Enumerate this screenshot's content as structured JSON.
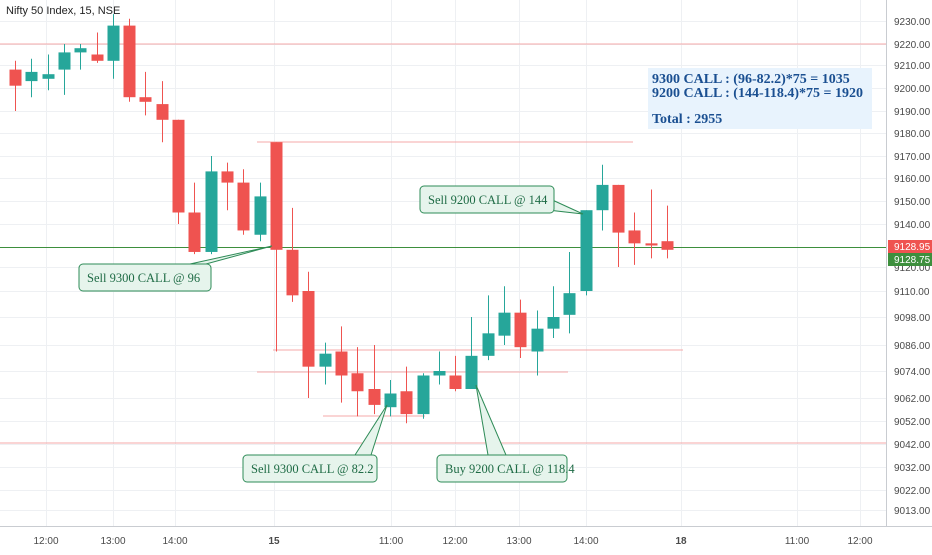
{
  "header": {
    "symbol_title": "Nifty 50 Index, 15, NSE"
  },
  "colors": {
    "up": "#26a69a",
    "down": "#ef5350",
    "grid": "#eef0f3",
    "level_line": "#f4a8a8",
    "green_line": "#3d8f3d",
    "note_bg": "#e8f3fd",
    "note_text": "#1a4f91",
    "callout_bg": "#e6f4ec",
    "callout_border": "#2e8b57",
    "callout_text": "#1e6b45",
    "axis_text": "#4a4a4a"
  },
  "price_badges": {
    "last": "9128.95",
    "reference": "9128.75"
  },
  "note": {
    "line1": "9300 CALL : (96-82.2)*75 = 1035",
    "line2": "9200 CALL : (144-118.4)*75 = 1920",
    "total": "Total : 2955"
  },
  "callouts": [
    "Sell 9300 CALL @ 96",
    "Sell 9300 CALL @ 82.2",
    "Buy 9200 CALL @ 118.4",
    "Sell 9200 CALL @ 144"
  ],
  "chart_data": {
    "type": "candlestick",
    "title": "Nifty 50 Index, 15, NSE",
    "yticks": [
      "9230.00",
      "9220.00",
      "9210.00",
      "9200.00",
      "9190.00",
      "9180.00",
      "9170.00",
      "9160.00",
      "9150.00",
      "9140.00",
      "9120.00",
      "9110.00",
      "9098.00",
      "9086.00",
      "9074.00",
      "9062.00",
      "9052.00",
      "9042.00",
      "9032.00",
      "9022.00",
      "9013.00"
    ],
    "xticks": [
      "12:00",
      "13:00",
      "14:00",
      "15",
      "11:00",
      "12:00",
      "13:00",
      "14:00",
      "18",
      "11:00",
      "12:00"
    ],
    "candles": [
      {
        "o": 9208,
        "h": 9212,
        "l": 9190,
        "c": 9201
      },
      {
        "o": 9203,
        "h": 9213,
        "l": 9196,
        "c": 9207
      },
      {
        "o": 9204,
        "h": 9215,
        "l": 9199,
        "c": 9206
      },
      {
        "o": 9208,
        "h": 9220,
        "l": 9197,
        "c": 9216
      },
      {
        "o": 9216,
        "h": 9220,
        "l": 9208,
        "c": 9218
      },
      {
        "o": 9215,
        "h": 9225,
        "l": 9211,
        "c": 9212
      },
      {
        "o": 9212,
        "h": 9233,
        "l": 9204,
        "c": 9228
      },
      {
        "o": 9228,
        "h": 9231,
        "l": 9194,
        "c": 9196
      },
      {
        "o": 9196,
        "h": 9207,
        "l": 9188,
        "c": 9194
      },
      {
        "o": 9193,
        "h": 9203,
        "l": 9176,
        "c": 9186
      },
      {
        "o": 9186,
        "h": 9186,
        "l": 9140,
        "c": 9145
      },
      {
        "o": 9145,
        "h": 9158,
        "l": 9126,
        "c": 9127
      },
      {
        "o": 9127,
        "h": 9170,
        "l": 9126,
        "c": 9163
      },
      {
        "o": 9163,
        "h": 9167,
        "l": 9146,
        "c": 9158
      },
      {
        "o": 9158,
        "h": 9164,
        "l": 9135,
        "c": 9137
      },
      {
        "o": 9135,
        "h": 9158,
        "l": 9132,
        "c": 9152
      },
      {
        "o": 9176,
        "h": 9176,
        "l": 9083,
        "c": 9128
      },
      {
        "o": 9128,
        "h": 9147,
        "l": 9105,
        "c": 9108
      },
      {
        "o": 9110,
        "h": 9118,
        "l": 9062,
        "c": 9076
      },
      {
        "o": 9076,
        "h": 9087,
        "l": 9068,
        "c": 9082
      },
      {
        "o": 9083,
        "h": 9094,
        "l": 9060,
        "c": 9072
      },
      {
        "o": 9073,
        "h": 9085,
        "l": 9054,
        "c": 9065
      },
      {
        "o": 9066,
        "h": 9086,
        "l": 9055,
        "c": 9059
      },
      {
        "o": 9058,
        "h": 9070,
        "l": 9054,
        "c": 9064
      },
      {
        "o": 9065,
        "h": 9076,
        "l": 9051,
        "c": 9055
      },
      {
        "o": 9055,
        "h": 9073,
        "l": 9053,
        "c": 9072
      },
      {
        "o": 9072,
        "h": 9083,
        "l": 9068,
        "c": 9074
      },
      {
        "o": 9072,
        "h": 9081,
        "l": 9065,
        "c": 9066
      },
      {
        "o": 9066,
        "h": 9098,
        "l": 9066,
        "c": 9081
      },
      {
        "o": 9081,
        "h": 9108,
        "l": 9079,
        "c": 9091
      },
      {
        "o": 9090,
        "h": 9112,
        "l": 9086,
        "c": 9100
      },
      {
        "o": 9100,
        "h": 9106,
        "l": 9080,
        "c": 9085
      },
      {
        "o": 9083,
        "h": 9101,
        "l": 9072,
        "c": 9093
      },
      {
        "o": 9093,
        "h": 9112,
        "l": 9089,
        "c": 9098
      },
      {
        "o": 9099,
        "h": 9127,
        "l": 9091,
        "c": 9109
      },
      {
        "o": 9110,
        "h": 9146,
        "l": 9108,
        "c": 9146
      },
      {
        "o": 9146,
        "h": 9166,
        "l": 9137,
        "c": 9157
      },
      {
        "o": 9157,
        "h": 9157,
        "l": 9120,
        "c": 9136
      },
      {
        "o": 9137,
        "h": 9145,
        "l": 9121,
        "c": 9131
      },
      {
        "o": 9131,
        "h": 9155,
        "l": 9124,
        "c": 9130
      },
      {
        "o": 9132,
        "h": 9148,
        "l": 9124,
        "c": 9128
      }
    ]
  }
}
